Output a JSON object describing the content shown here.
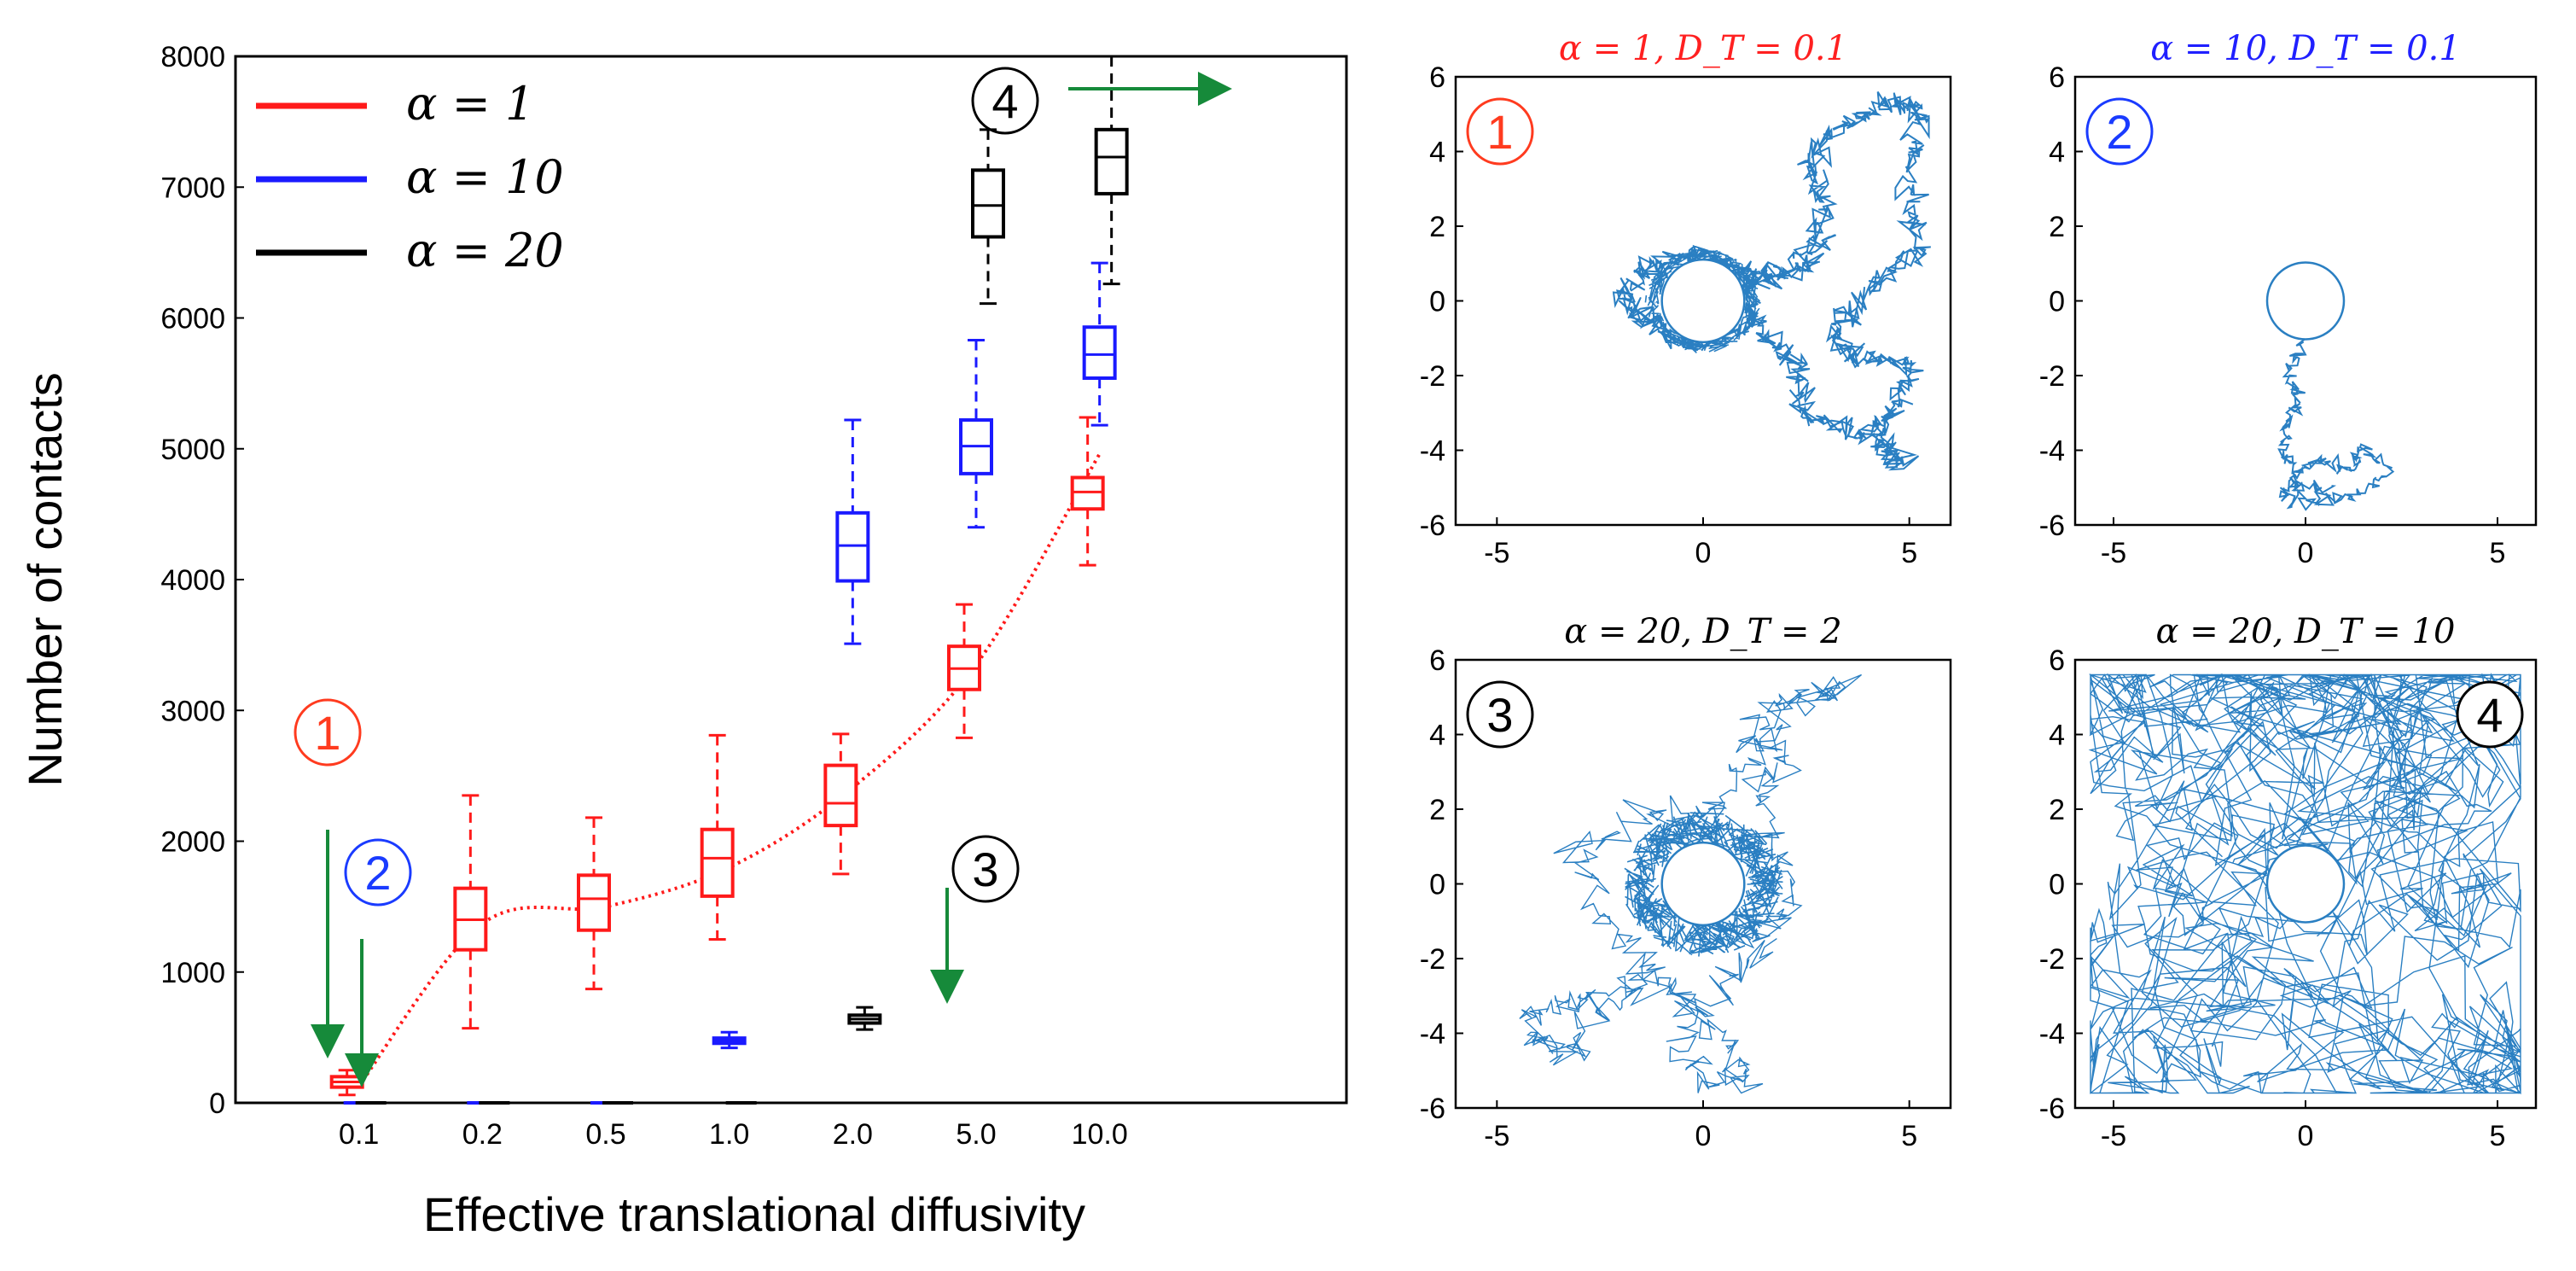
{
  "chart_data": [
    {
      "type": "box",
      "ylabel": "Number of contacts",
      "xlabel": "Effective translational diffusivity",
      "categories": [
        "0.1",
        "0.2",
        "0.5",
        "1.0",
        "2.0",
        "5.0",
        "10.0"
      ],
      "ylim": [
        0,
        8000
      ],
      "yticks": [
        "0",
        "1000",
        "2000",
        "3000",
        "4000",
        "5000",
        "6000",
        "7000",
        "8000"
      ],
      "legend": {
        "position": "top-left",
        "entries": [
          "α = 1",
          "α = 10",
          "α = 20"
        ]
      },
      "series": [
        {
          "name": "α = 1",
          "color": "#ff1a1a",
          "boxes": [
            {
              "cat": "0.1",
              "min": 60,
              "q1": 120,
              "median": 160,
              "q3": 200,
              "max": 250
            },
            {
              "cat": "0.2",
              "min": 570,
              "q1": 1170,
              "median": 1400,
              "q3": 1640,
              "max": 2350
            },
            {
              "cat": "0.5",
              "min": 870,
              "q1": 1320,
              "median": 1560,
              "q3": 1740,
              "max": 2180
            },
            {
              "cat": "1.0",
              "min": 1250,
              "q1": 1580,
              "median": 1870,
              "q3": 2090,
              "max": 2810
            },
            {
              "cat": "2.0",
              "min": 1750,
              "q1": 2120,
              "median": 2290,
              "q3": 2580,
              "max": 2820
            },
            {
              "cat": "5.0",
              "min": 2790,
              "q1": 3160,
              "median": 3320,
              "q3": 3490,
              "max": 3810
            },
            {
              "cat": "10.0",
              "min": 4110,
              "q1": 4540,
              "median": 4670,
              "q3": 4780,
              "max": 5240
            }
          ]
        },
        {
          "name": "α = 10",
          "color": "#1a1aff",
          "boxes": [
            {
              "cat": "0.1",
              "min": 0,
              "q1": 0,
              "median": 0,
              "q3": 0,
              "max": 0
            },
            {
              "cat": "0.2",
              "min": 0,
              "q1": 0,
              "median": 0,
              "q3": 0,
              "max": 0
            },
            {
              "cat": "0.5",
              "min": 0,
              "q1": 0,
              "median": 0,
              "q3": 0,
              "max": 0
            },
            {
              "cat": "1.0",
              "min": 420,
              "q1": 455,
              "median": 475,
              "q3": 495,
              "max": 540
            },
            {
              "cat": "2.0",
              "min": 3510,
              "q1": 3990,
              "median": 4260,
              "q3": 4510,
              "max": 5220
            },
            {
              "cat": "5.0",
              "min": 4400,
              "q1": 4810,
              "median": 5020,
              "q3": 5220,
              "max": 5830
            },
            {
              "cat": "10.0",
              "min": 5180,
              "q1": 5540,
              "median": 5720,
              "q3": 5930,
              "max": 6420
            }
          ]
        },
        {
          "name": "α = 20",
          "color": "#000000",
          "boxes": [
            {
              "cat": "0.1",
              "min": 0,
              "q1": 0,
              "median": 0,
              "q3": 0,
              "max": 0
            },
            {
              "cat": "0.2",
              "min": 0,
              "q1": 0,
              "median": 0,
              "q3": 0,
              "max": 0
            },
            {
              "cat": "0.5",
              "min": 0,
              "q1": 0,
              "median": 0,
              "q3": 0,
              "max": 0
            },
            {
              "cat": "1.0",
              "min": 0,
              "q1": 0,
              "median": 0,
              "q3": 0,
              "max": 0
            },
            {
              "cat": "2.0",
              "min": 560,
              "q1": 610,
              "median": 640,
              "q3": 670,
              "max": 730
            },
            {
              "cat": "5.0",
              "min": 6110,
              "q1": 6620,
              "median": 6860,
              "q3": 7130,
              "max": 7440
            },
            {
              "cat": "10.0",
              "min": 6260,
              "q1": 6950,
              "median": 7230,
              "q3": 7440,
              "max": 8000
            }
          ]
        }
      ],
      "fit_curve": {
        "name": "α = 1 trend",
        "style": "dotted",
        "color": "#ff1a1a",
        "points": [
          [
            0.1,
            130
          ],
          [
            0.2,
            1370
          ],
          [
            0.5,
            1500
          ],
          [
            1.0,
            1800
          ],
          [
            2.0,
            2410
          ],
          [
            5.0,
            3350
          ],
          [
            10.0,
            4960
          ]
        ]
      },
      "annotations": [
        {
          "label": "1",
          "color": "#ff3b1f"
        },
        {
          "label": "2",
          "color": "#1a3bff"
        },
        {
          "label": "3",
          "color": "#000000"
        },
        {
          "label": "4",
          "color": "#000000"
        }
      ]
    },
    {
      "type": "trajectory",
      "title": "α = 1,  D_T = 0.1",
      "title_color": "#ff2020",
      "marker": "1",
      "marker_color": "#ff3b1f",
      "xlim": [
        -6,
        6
      ],
      "ylim": [
        -6,
        6
      ],
      "xticks": [
        "-5",
        "0",
        "5"
      ],
      "yticks": [
        "-6",
        "-4",
        "-2",
        "0",
        "2",
        "4",
        "6"
      ],
      "obstacle": {
        "x": 0,
        "y": 0,
        "r": 1.0
      },
      "style": "dense",
      "path": [
        [
          0,
          -1.2
        ],
        [
          -1.3,
          -0.6
        ],
        [
          -2.0,
          0.1
        ],
        [
          -1.3,
          0.9
        ],
        [
          -0.2,
          1.3
        ],
        [
          1.0,
          0.8
        ],
        [
          1.6,
          0.6
        ],
        [
          2.6,
          1.0
        ],
        [
          3.0,
          2.6
        ],
        [
          2.5,
          3.8
        ],
        [
          3.4,
          4.7
        ],
        [
          4.5,
          5.3
        ],
        [
          5.3,
          5.0
        ],
        [
          5.0,
          3.3
        ],
        [
          5.3,
          1.4
        ],
        [
          4.1,
          0.4
        ],
        [
          3.1,
          -0.8
        ],
        [
          3.7,
          -1.6
        ],
        [
          5.1,
          -1.7
        ],
        [
          4.7,
          -2.8
        ],
        [
          4.1,
          -3.5
        ],
        [
          4.9,
          -4.3
        ],
        [
          3.8,
          -3.6
        ],
        [
          2.4,
          -3.1
        ],
        [
          2.3,
          -1.7
        ],
        [
          1.4,
          -0.9
        ],
        [
          1.0,
          0.3
        ],
        [
          3.2,
          1.8
        ]
      ]
    },
    {
      "type": "trajectory",
      "title": "α = 10,  D_T = 0.1",
      "title_color": "#2020ff",
      "marker": "2",
      "marker_color": "#1a3bff",
      "xlim": [
        -6,
        6
      ],
      "ylim": [
        -6,
        6
      ],
      "xticks": [
        "-5",
        "0",
        "5"
      ],
      "yticks": [
        "-6",
        "-4",
        "-2",
        "0",
        "2",
        "4",
        "6"
      ],
      "obstacle": {
        "x": 0,
        "y": 0,
        "r": 1.0
      },
      "style": "sparse",
      "path": [
        [
          -0.1,
          -1.0
        ],
        [
          -0.4,
          -1.9
        ],
        [
          -0.2,
          -2.7
        ],
        [
          -0.5,
          -3.3
        ],
        [
          -0.6,
          -4.0
        ],
        [
          -0.3,
          -4.7
        ],
        [
          0.4,
          -4.3
        ],
        [
          1.2,
          -4.6
        ],
        [
          1.4,
          -3.9
        ],
        [
          2.2,
          -4.6
        ],
        [
          1.3,
          -5.2
        ],
        [
          0.3,
          -5.4
        ],
        [
          -0.6,
          -5.3
        ],
        [
          -0.4,
          -4.9
        ],
        [
          0.6,
          -5.0
        ]
      ]
    },
    {
      "type": "trajectory",
      "title": "α = 20,  D_T = 2",
      "title_color": "#000000",
      "marker": "3",
      "marker_color": "#000000",
      "xlim": [
        -6,
        6
      ],
      "ylim": [
        -6,
        6
      ],
      "xticks": [
        "-5",
        "0",
        "5"
      ],
      "yticks": [
        "-6",
        "-4",
        "-2",
        "0",
        "2",
        "4",
        "6"
      ],
      "obstacle": {
        "x": 0,
        "y": 0,
        "r": 1.0
      },
      "style": "ring",
      "path": [
        [
          0,
          -1.3
        ],
        [
          1.6,
          -1.3
        ],
        [
          2.2,
          -0.2
        ],
        [
          1.5,
          1.5
        ],
        [
          1.3,
          2.6
        ],
        [
          2.0,
          3.4
        ],
        [
          1.0,
          4.0
        ],
        [
          2.2,
          5.0
        ],
        [
          3.4,
          5.2
        ],
        [
          2.0,
          4.6
        ],
        [
          0.8,
          3.0
        ],
        [
          0.3,
          1.9
        ],
        [
          -1.3,
          1.9
        ],
        [
          -3.0,
          1.1
        ],
        [
          -2.5,
          -0.8
        ],
        [
          -1.3,
          -2.1
        ],
        [
          -2.1,
          -3.0
        ],
        [
          -3.3,
          -3.2
        ],
        [
          -4.3,
          -3.4
        ],
        [
          -4.0,
          -4.2
        ],
        [
          -3.3,
          -4.6
        ],
        [
          -2.5,
          -3.6
        ],
        [
          -1.0,
          -2.5
        ],
        [
          -0.3,
          -3.2
        ],
        [
          0.5,
          -4.1
        ],
        [
          1.2,
          -5.3
        ],
        [
          0.1,
          -5.2
        ],
        [
          -0.7,
          -4.3
        ],
        [
          0.7,
          -2.4
        ],
        [
          1.5,
          -1.6
        ]
      ]
    },
    {
      "type": "trajectory",
      "title": "α = 20,  D_T = 10",
      "title_color": "#000000",
      "marker": "4",
      "marker_color": "#000000",
      "xlim": [
        -6,
        6
      ],
      "ylim": [
        -6,
        6
      ],
      "xticks": [
        "-5",
        "0",
        "5"
      ],
      "yticks": [
        "-6",
        "-4",
        "-2",
        "0",
        "2",
        "4",
        "6"
      ],
      "obstacle": {
        "x": 0,
        "y": 0,
        "r": 1.0
      },
      "style": "fill",
      "path": []
    }
  ]
}
